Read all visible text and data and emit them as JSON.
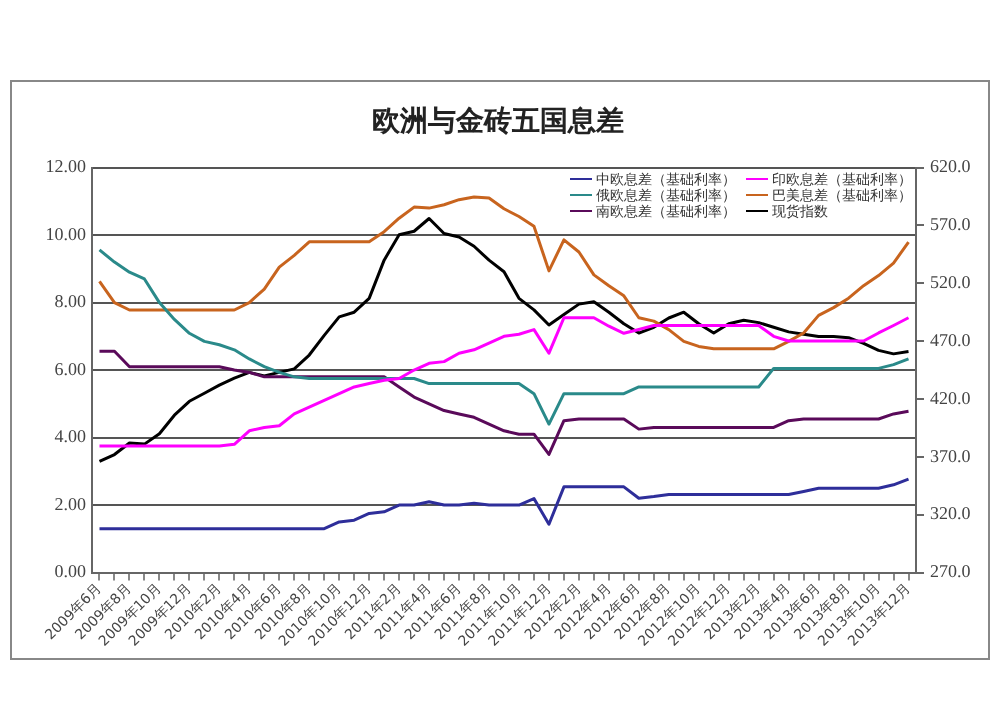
{
  "chart_data": {
    "type": "line",
    "title": "欧洲与金砖五国息差",
    "categories": [
      "2009年6月",
      null,
      "2009年8月",
      null,
      "2009年10月",
      null,
      "2009年12月",
      null,
      "2010年2月",
      null,
      "2010年4月",
      null,
      "2010年6月",
      null,
      "2010年8月",
      null,
      "2010年10月",
      null,
      "2010年12月",
      null,
      "2011年2月",
      null,
      "2011年4月",
      null,
      "2011年6月",
      null,
      "2011年8月",
      null,
      "2011年10月",
      null,
      "2011年12月",
      null,
      "2012年2月",
      null,
      "2012年4月",
      null,
      "2012年6月",
      null,
      "2012年8月",
      null,
      "2012年10月",
      null,
      "2012年12月",
      null,
      "2013年2月",
      null,
      "2013年4月",
      null,
      "2013年6月",
      null,
      "2013年8月",
      null,
      "2013年10月",
      null,
      "2013年12月"
    ],
    "series": [
      {
        "name": "中欧息差（基础利率）",
        "color": "#2e2e9a",
        "values": [
          1.3,
          1.3,
          1.3,
          1.3,
          1.3,
          1.3,
          1.3,
          1.3,
          1.3,
          1.3,
          1.3,
          1.3,
          1.3,
          1.3,
          1.3,
          1.3,
          1.5,
          1.55,
          1.75,
          1.8,
          2.0,
          2.0,
          2.1,
          2.0,
          2.0,
          2.05,
          2.0,
          2.0,
          2.0,
          2.19,
          1.43,
          2.54,
          2.54,
          2.54,
          2.54,
          2.54,
          2.2,
          2.25,
          2.31,
          2.31,
          2.31,
          2.31,
          2.31,
          2.31,
          2.31,
          2.31,
          2.31,
          2.4,
          2.5,
          2.5,
          2.5,
          2.5,
          2.5,
          2.6,
          2.77
        ]
      },
      {
        "name": "印欧息差（基础利率）",
        "color": "#ff00ff",
        "values": [
          3.75,
          3.75,
          3.75,
          3.75,
          3.75,
          3.75,
          3.75,
          3.75,
          3.75,
          3.8,
          4.2,
          4.3,
          4.35,
          4.7,
          4.9,
          5.1,
          5.3,
          5.5,
          5.6,
          5.7,
          5.75,
          6.0,
          6.2,
          6.25,
          6.5,
          6.6,
          6.8,
          7.0,
          7.06,
          7.2,
          6.5,
          7.55,
          7.55,
          7.55,
          7.3,
          7.09,
          7.2,
          7.32,
          7.32,
          7.32,
          7.32,
          7.32,
          7.32,
          7.32,
          7.32,
          7.0,
          6.86,
          6.86,
          6.86,
          6.86,
          6.86,
          6.86,
          7.1,
          7.32,
          7.55
        ]
      },
      {
        "name": "俄欧息差（基础利率）",
        "color": "#2a8a8a",
        "values": [
          9.56,
          9.2,
          8.9,
          8.7,
          8.0,
          7.5,
          7.09,
          6.85,
          6.75,
          6.6,
          6.33,
          6.1,
          5.93,
          5.8,
          5.75,
          5.75,
          5.75,
          5.75,
          5.75,
          5.75,
          5.75,
          5.75,
          5.6,
          5.6,
          5.6,
          5.6,
          5.6,
          5.6,
          5.6,
          5.3,
          4.4,
          5.3,
          5.3,
          5.3,
          5.3,
          5.3,
          5.5,
          5.5,
          5.5,
          5.5,
          5.5,
          5.5,
          5.5,
          5.5,
          5.5,
          6.05,
          6.05,
          6.05,
          6.05,
          6.05,
          6.05,
          6.05,
          6.05,
          6.16,
          6.33
        ]
      },
      {
        "name": "巴美息差（基础利率）",
        "color": "#c8641e",
        "values": [
          8.63,
          8.0,
          7.78,
          7.78,
          7.78,
          7.78,
          7.78,
          7.78,
          7.78,
          7.78,
          8.0,
          8.4,
          9.05,
          9.4,
          9.8,
          9.8,
          9.8,
          9.8,
          9.8,
          10.1,
          10.5,
          10.83,
          10.8,
          10.9,
          11.05,
          11.13,
          11.1,
          10.78,
          10.55,
          10.26,
          8.94,
          9.86,
          9.5,
          8.82,
          8.5,
          8.2,
          7.55,
          7.45,
          7.2,
          6.85,
          6.7,
          6.63,
          6.63,
          6.63,
          6.63,
          6.63,
          6.85,
          7.1,
          7.62,
          7.85,
          8.13,
          8.5,
          8.8,
          9.17,
          9.79
        ]
      },
      {
        "name": "南欧息差（基础利率）",
        "color": "#5a0a5a",
        "values": [
          6.56,
          6.56,
          6.1,
          6.1,
          6.1,
          6.1,
          6.1,
          6.1,
          6.1,
          6.0,
          5.93,
          5.8,
          5.8,
          5.8,
          5.8,
          5.8,
          5.8,
          5.8,
          5.8,
          5.8,
          5.5,
          5.2,
          5.0,
          4.8,
          4.7,
          4.6,
          4.4,
          4.2,
          4.1,
          4.1,
          3.5,
          4.5,
          4.55,
          4.55,
          4.55,
          4.55,
          4.25,
          4.3,
          4.3,
          4.3,
          4.3,
          4.3,
          4.3,
          4.3,
          4.3,
          4.3,
          4.5,
          4.55,
          4.55,
          4.55,
          4.55,
          4.55,
          4.55,
          4.7,
          4.78
        ]
      },
      {
        "name": "现货指数",
        "color": "#000000",
        "axis": "y2",
        "values": [
          366,
          372,
          382,
          381,
          390,
          406,
          418,
          425,
          432,
          438,
          443,
          440,
          443,
          446,
          458,
          475,
          491,
          495,
          507,
          540,
          562,
          565,
          576,
          563,
          560,
          552,
          540,
          530,
          507,
          497,
          484,
          493,
          502,
          504,
          495,
          485,
          477,
          482,
          490,
          495,
          485,
          477,
          485,
          488,
          486,
          482,
          478,
          476,
          474,
          474,
          473,
          468,
          462,
          459,
          461
        ]
      }
    ],
    "ylim": [
      0,
      12
    ],
    "yticks": [
      {
        "value": 0,
        "label": "0.00"
      },
      {
        "value": 2,
        "label": "2.00"
      },
      {
        "value": 4,
        "label": "4.00"
      },
      {
        "value": 6,
        "label": "6.00"
      },
      {
        "value": 8,
        "label": "8.00"
      },
      {
        "value": 10,
        "label": "10.00"
      },
      {
        "value": 12,
        "label": "12.00"
      }
    ],
    "y2lim": [
      270,
      620
    ],
    "y2ticks": [
      {
        "value": 270,
        "label": "270.0"
      },
      {
        "value": 320,
        "label": "320.0"
      },
      {
        "value": 370,
        "label": "370.0"
      },
      {
        "value": 420,
        "label": "420.0"
      },
      {
        "value": 470,
        "label": "470.0"
      },
      {
        "value": 520,
        "label": "520.0"
      },
      {
        "value": 570,
        "label": "570.0"
      },
      {
        "value": 620,
        "label": "620.0"
      }
    ],
    "grid": "y",
    "legend": "top right",
    "marker": "none",
    "line_style": "solid"
  }
}
